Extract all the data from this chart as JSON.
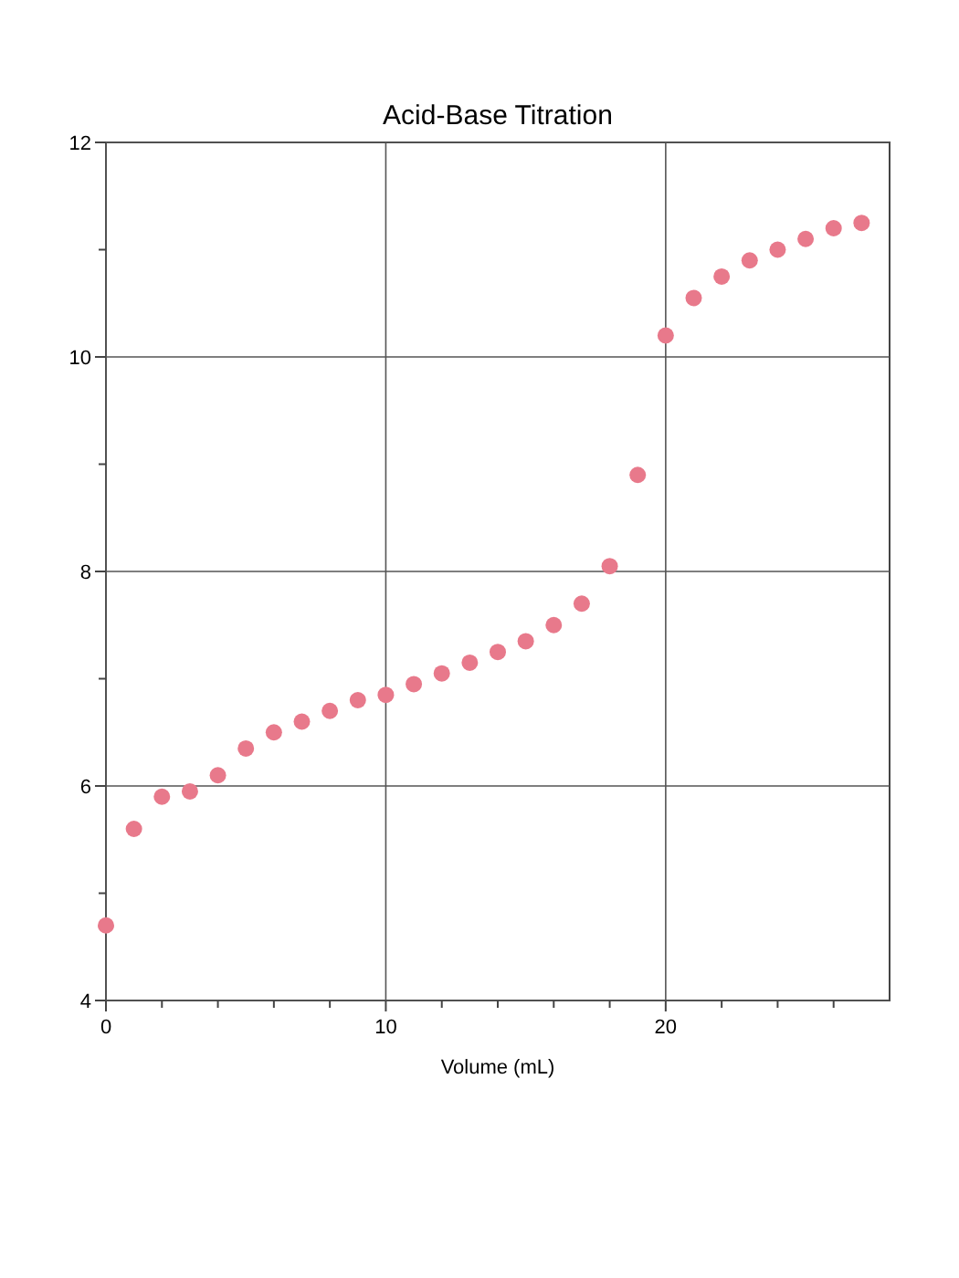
{
  "chart_data": {
    "type": "scatter",
    "title": "Acid-Base Titration",
    "xlabel": "Volume (mL)",
    "x": [
      0,
      1,
      2,
      3,
      4,
      5,
      6,
      7,
      8,
      9,
      10,
      11,
      12,
      13,
      14,
      15,
      16,
      17,
      18,
      19,
      20,
      21,
      22,
      23,
      24,
      25,
      26,
      27
    ],
    "series": [
      {
        "color": "#e8798b",
        "values": [
          4.7,
          5.6,
          5.9,
          5.95,
          6.1,
          6.35,
          6.5,
          6.6,
          6.7,
          6.8,
          6.85,
          6.95,
          7.05,
          7.15,
          7.25,
          7.35,
          7.5,
          7.7,
          8.05,
          8.9,
          10.2,
          10.55,
          10.75,
          10.9,
          11.0,
          11.1,
          11.2,
          11.25
        ]
      }
    ],
    "xlim": [
      0,
      28
    ],
    "xticks": [
      0,
      {
        "value": 2,
        "label": null
      },
      {
        "value": 4,
        "label": null
      },
      {
        "value": 6,
        "label": null
      },
      {
        "value": 8,
        "label": null
      },
      10,
      {
        "value": 12,
        "label": null
      },
      {
        "value": 14,
        "label": null
      },
      {
        "value": 16,
        "label": null
      },
      {
        "value": 18,
        "label": null
      },
      20,
      {
        "value": 22,
        "label": null
      },
      {
        "value": 24,
        "label": null
      },
      {
        "value": 26,
        "label": null
      }
    ],
    "ylim": [
      4,
      12
    ],
    "yticks": [
      4,
      {
        "value": 5,
        "label": null
      },
      6,
      {
        "value": 7,
        "label": null
      },
      8,
      {
        "value": 9,
        "label": null
      },
      10,
      {
        "value": 11,
        "label": null
      },
      12
    ],
    "grid": true,
    "marker": "circle"
  }
}
